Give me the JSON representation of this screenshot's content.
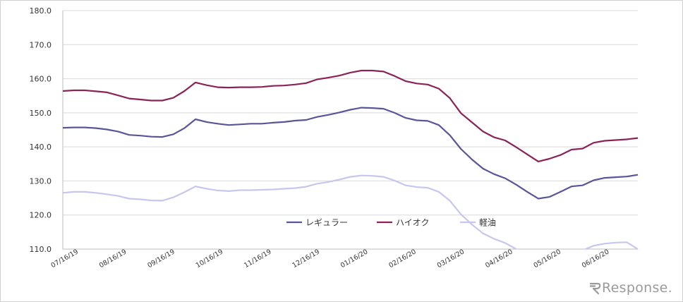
{
  "chart_data": {
    "type": "line",
    "title": "",
    "xlabel": "",
    "ylabel": "",
    "ylim": [
      110,
      180
    ],
    "yticks": [
      "110.0",
      "120.0",
      "130.0",
      "140.0",
      "150.0",
      "160.0",
      "170.0",
      "180.0"
    ],
    "grid": "horizontal",
    "x_tick_labels": [
      "07/16/19",
      "08/16/19",
      "09/16/19",
      "10/16/19",
      "11/16/19",
      "12/16/19",
      "01/16/20",
      "02/16/20",
      "03/16/20",
      "04/16/20",
      "05/16/20",
      "06/16/20"
    ],
    "legend_position": "inside-lower-center",
    "series": [
      {
        "name": "レギュラー",
        "color": "#5a5599",
        "values": [
          145.6,
          145.7,
          145.7,
          145.5,
          145.1,
          144.5,
          143.5,
          143.3,
          143.0,
          142.9,
          143.7,
          145.5,
          148.1,
          147.3,
          146.8,
          146.4,
          146.6,
          146.8,
          146.8,
          147.1,
          147.3,
          147.7,
          147.9,
          148.8,
          149.4,
          150.1,
          150.9,
          151.5,
          151.4,
          151.2,
          150.0,
          148.5,
          147.8,
          147.6,
          146.4,
          143.4,
          139.4,
          136.3,
          133.6,
          132.0,
          130.8,
          128.9,
          126.8,
          124.8,
          125.3,
          126.8,
          128.4,
          128.7,
          130.2,
          130.9,
          131.1,
          131.3,
          131.8
        ]
      },
      {
        "name": "ハイオク",
        "color": "#8a2458",
        "values": [
          156.4,
          156.6,
          156.6,
          156.3,
          156.0,
          155.1,
          154.2,
          153.9,
          153.6,
          153.6,
          154.4,
          156.4,
          158.9,
          158.1,
          157.5,
          157.4,
          157.5,
          157.5,
          157.6,
          157.9,
          158.0,
          158.3,
          158.7,
          159.8,
          160.3,
          160.9,
          161.8,
          162.4,
          162.4,
          162.1,
          160.8,
          159.3,
          158.6,
          158.3,
          157.1,
          154.3,
          149.9,
          147.2,
          144.5,
          142.8,
          141.9,
          139.9,
          137.8,
          135.7,
          136.5,
          137.6,
          139.2,
          139.5,
          141.2,
          141.8,
          142.0,
          142.2,
          142.6
        ]
      },
      {
        "name": "軽油",
        "color": "#c7c6ee",
        "values": [
          126.5,
          126.8,
          126.8,
          126.5,
          126.1,
          125.6,
          124.8,
          124.6,
          124.3,
          124.2,
          125.2,
          126.7,
          128.4,
          127.7,
          127.2,
          127.0,
          127.3,
          127.3,
          127.4,
          127.5,
          127.7,
          127.9,
          128.3,
          129.2,
          129.7,
          130.4,
          131.2,
          131.6,
          131.5,
          131.2,
          130.1,
          128.7,
          128.2,
          128.0,
          126.8,
          124.2,
          120.2,
          117.2,
          114.6,
          113.0,
          111.8,
          110.0,
          108.0,
          106.0,
          106.4,
          107.6,
          109.0,
          109.6,
          111.0,
          111.6,
          111.9,
          112.0,
          110.0
        ]
      }
    ]
  },
  "watermark": {
    "brand": "Response",
    "suffix": ".",
    "icon": "response-logo-icon"
  }
}
